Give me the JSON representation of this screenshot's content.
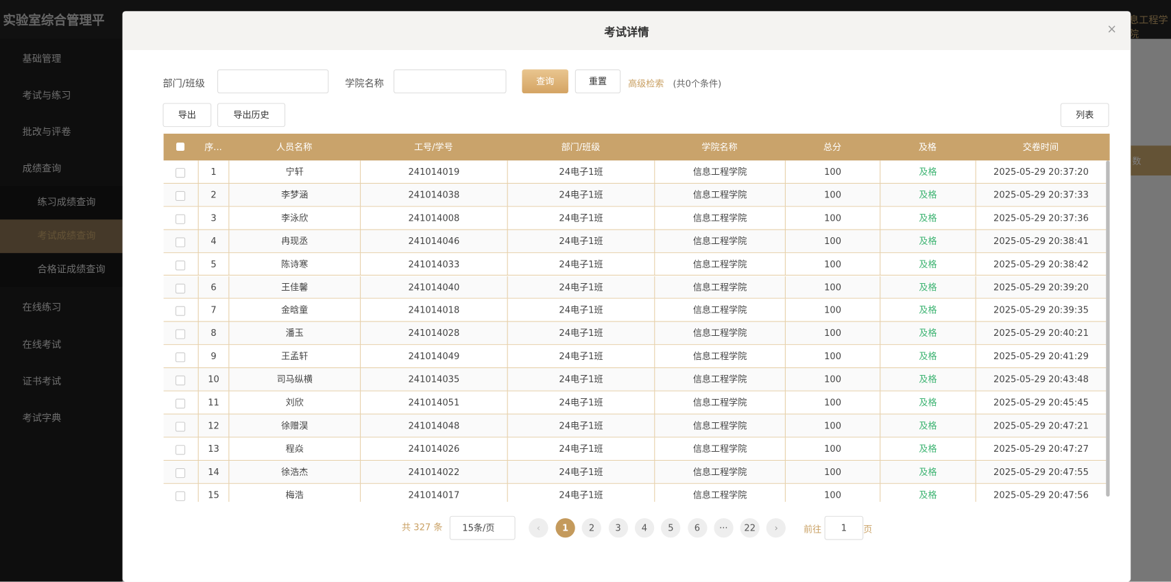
{
  "sidebar": {
    "app_title": "实验室综合管理平",
    "menu_top": [
      "基础管理",
      "考试与练习",
      "批改与评卷",
      "成绩查询"
    ],
    "submenu": [
      "练习成绩查询",
      "考试成绩查询",
      "合格证成绩查询"
    ],
    "menu_bottom": [
      "在线练习",
      "在线考试",
      "证书考试",
      "考试字典"
    ]
  },
  "background": {
    "header_text": "息工程学院",
    "column_text": "数"
  },
  "modal": {
    "title": "考试详情",
    "filters": [
      "部门/班级",
      "学院名称"
    ],
    "query": "查询",
    "reset": "重置",
    "advanced": "高级检索",
    "condition": "(共0个条件)",
    "export": "导出",
    "export_history": "导出历史",
    "list": "列表"
  },
  "table": {
    "columns": [
      "序...",
      "人员名称",
      "工号/学号",
      "部门/班级",
      "学院名称",
      "总分",
      "及格",
      "交卷时间"
    ],
    "rows": [
      [
        1,
        "宁轩",
        "241014019",
        "24电子1班",
        "信息工程学院",
        100,
        "及格",
        "2025-05-29 20:37:20"
      ],
      [
        2,
        "李梦涵",
        "241014038",
        "24电子1班",
        "信息工程学院",
        100,
        "及格",
        "2025-05-29 20:37:33"
      ],
      [
        3,
        "李泳欣",
        "241014008",
        "24电子1班",
        "信息工程学院",
        100,
        "及格",
        "2025-05-29 20:37:36"
      ],
      [
        4,
        "冉现丞",
        "241014046",
        "24电子1班",
        "信息工程学院",
        100,
        "及格",
        "2025-05-29 20:38:41"
      ],
      [
        5,
        "陈诗寒",
        "241014033",
        "24电子1班",
        "信息工程学院",
        100,
        "及格",
        "2025-05-29 20:38:42"
      ],
      [
        6,
        "王佳馨",
        "241014040",
        "24电子1班",
        "信息工程学院",
        100,
        "及格",
        "2025-05-29 20:39:20"
      ],
      [
        7,
        "金晗童",
        "241014018",
        "24电子1班",
        "信息工程学院",
        100,
        "及格",
        "2025-05-29 20:39:35"
      ],
      [
        8,
        "潘玉",
        "241014028",
        "24电子1班",
        "信息工程学院",
        100,
        "及格",
        "2025-05-29 20:40:21"
      ],
      [
        9,
        "王孟轩",
        "241014049",
        "24电子1班",
        "信息工程学院",
        100,
        "及格",
        "2025-05-29 20:41:29"
      ],
      [
        10,
        "司马纵横",
        "241014035",
        "24电子1班",
        "信息工程学院",
        100,
        "及格",
        "2025-05-29 20:43:48"
      ],
      [
        11,
        "刘欣",
        "241014051",
        "24电子1班",
        "信息工程学院",
        100,
        "及格",
        "2025-05-29 20:45:45"
      ],
      [
        12,
        "徐赠淏",
        "241014048",
        "24电子1班",
        "信息工程学院",
        100,
        "及格",
        "2025-05-29 20:47:21"
      ],
      [
        13,
        "程焱",
        "241014026",
        "24电子1班",
        "信息工程学院",
        100,
        "及格",
        "2025-05-29 20:47:27"
      ],
      [
        14,
        "徐浩杰",
        "241014022",
        "24电子1班",
        "信息工程学院",
        100,
        "及格",
        "2025-05-29 20:47:55"
      ],
      [
        15,
        "梅浩",
        "241014017",
        "24电子1班",
        "信息工程学院",
        100,
        "及格",
        "2025-05-29 20:47:56"
      ]
    ]
  },
  "pagination": {
    "total": "共 327 条",
    "page_size": "15条/页",
    "pages": [
      1,
      2,
      3,
      4,
      5,
      6,
      "···",
      22
    ],
    "goto": "前往",
    "goto_value": 1,
    "page_unit": "页"
  }
}
